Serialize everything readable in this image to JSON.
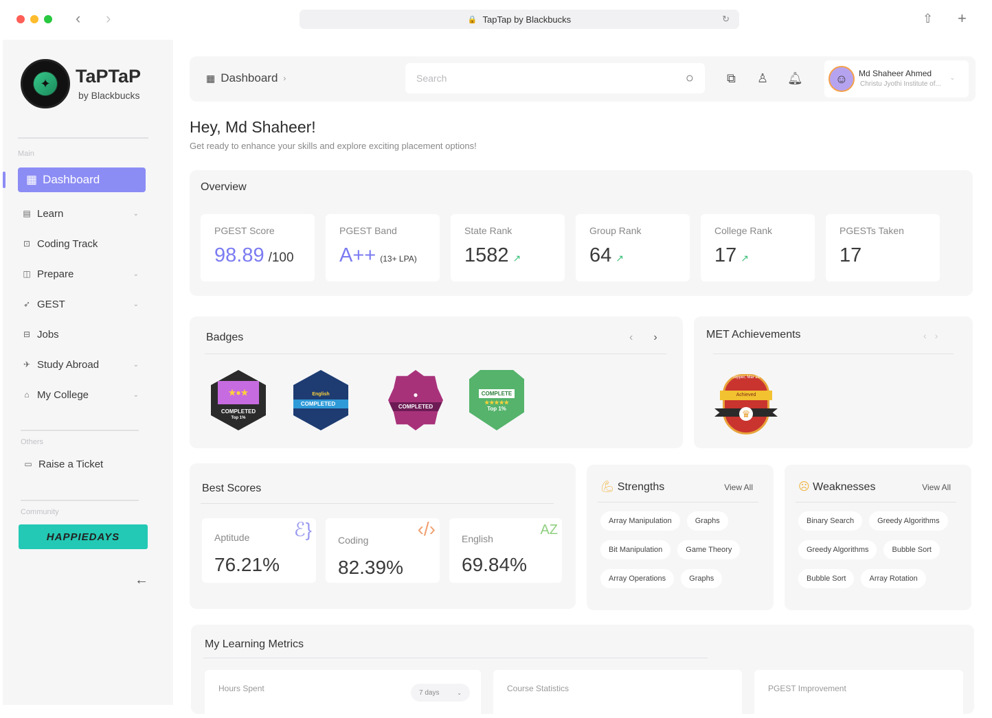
{
  "browser": {
    "title": "TapTap by Blackbucks"
  },
  "brand": {
    "name": "TaPTaP",
    "sub": "by Blackbucks"
  },
  "sidebar": {
    "main_label": "Main",
    "active": "Dashboard",
    "items": [
      {
        "label": "Learn",
        "icon": "book-icon",
        "has_chevron": true
      },
      {
        "label": "Coding Track",
        "icon": "code-icon",
        "has_chevron": false
      },
      {
        "label": "Prepare",
        "icon": "notebook-icon",
        "has_chevron": true
      },
      {
        "label": "GEST",
        "icon": "rocket-icon",
        "has_chevron": true
      },
      {
        "label": "Jobs",
        "icon": "briefcase-icon",
        "has_chevron": false
      },
      {
        "label": "Study Abroad",
        "icon": "globe-icon",
        "has_chevron": true
      },
      {
        "label": "My College",
        "icon": "college-icon",
        "has_chevron": true
      }
    ],
    "others_label": "Others",
    "raise_ticket": "Raise a Ticket",
    "community_label": "Community",
    "promo": "HAPPIEDAYS"
  },
  "topbar": {
    "breadcrumb": "Dashboard",
    "search_placeholder": "Search",
    "user_name": "Md Shaheer Ahmed",
    "user_institute": "Christu Jyothi Institute of..."
  },
  "greeting": {
    "title": "Hey, Md Shaheer!",
    "subtitle": "Get ready to enhance your skills and explore exciting placement options!"
  },
  "overview": {
    "title": "Overview",
    "stats": [
      {
        "label": "PGEST Score",
        "value": "98.89",
        "suffix": "/100",
        "trend": ""
      },
      {
        "label": "PGEST Band",
        "value": "A++",
        "suffix": "(13+ LPA)",
        "trend": ""
      },
      {
        "label": "State Rank",
        "value": "1582",
        "suffix": "",
        "trend": "↗"
      },
      {
        "label": "Group Rank",
        "value": "64",
        "suffix": "",
        "trend": "↗"
      },
      {
        "label": "College Rank",
        "value": "17",
        "suffix": "",
        "trend": "↗"
      },
      {
        "label": "PGESTs Taken",
        "value": "17",
        "suffix": "",
        "trend": ""
      }
    ]
  },
  "badges": {
    "title": "Badges",
    "items": [
      {
        "caption": "COMPLETED",
        "sub": "Top 1%",
        "color": "#c66be0",
        "frame": "#2b2b2b"
      },
      {
        "caption": "COMPLETED",
        "sub": "English",
        "color": "#2f7fc4",
        "frame": "#1e3c72"
      },
      {
        "caption": "COMPLETED",
        "sub": "Top 1%",
        "color": "#a8327a",
        "frame": "#6d1b55"
      },
      {
        "caption": "COMPLETE",
        "sub": "Top 1%",
        "color": "#55b36b",
        "frame": "#2e7d3a"
      }
    ]
  },
  "met": {
    "title": "MET Achievements",
    "trophy_top": "Topper, Mar 24",
    "trophy_label": "Achieved"
  },
  "best_scores": {
    "title": "Best Scores",
    "items": [
      {
        "label": "Aptitude",
        "value": "76.21%",
        "icon": "brain-icon",
        "color": "#9b9bf0"
      },
      {
        "label": "Coding",
        "value": "82.39%",
        "icon": "code-brackets-icon",
        "color": "#f0a070"
      },
      {
        "label": "English",
        "value": "69.84%",
        "icon": "az-bubble-icon",
        "color": "#8fcf7e"
      }
    ]
  },
  "strengths": {
    "title": "Strengths",
    "view_all": "View All",
    "chips": [
      "Array Manipulation",
      "Graphs",
      "Bit Manipulation",
      "Game Theory",
      "Array Operations",
      "Graphs"
    ]
  },
  "weaknesses": {
    "title": "Weaknesses",
    "view_all": "View All",
    "chips": [
      "Binary Search",
      "Greedy Algorithms",
      "Greedy Algorithms",
      "Bubble Sort",
      "Bubble Sort",
      "Array Rotation"
    ]
  },
  "metrics": {
    "title": "My Learning Metrics",
    "cards": [
      {
        "label": "Hours Spent",
        "select": "7 days"
      },
      {
        "label": "Course Statistics"
      },
      {
        "label": "PGEST Improvement"
      }
    ]
  }
}
